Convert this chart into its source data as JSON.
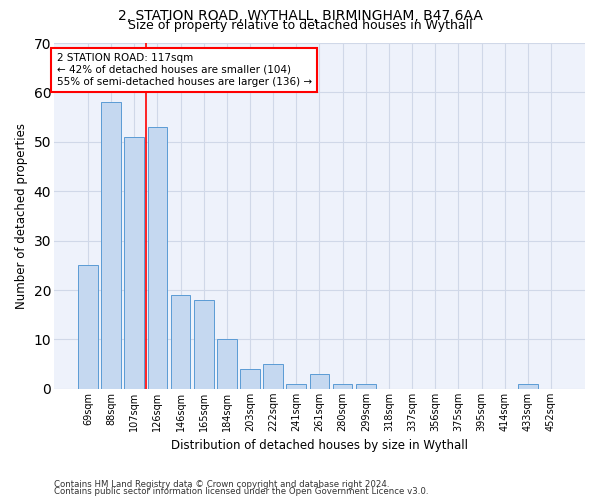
{
  "title1": "2, STATION ROAD, WYTHALL, BIRMINGHAM, B47 6AA",
  "title2": "Size of property relative to detached houses in Wythall",
  "xlabel": "Distribution of detached houses by size in Wythall",
  "ylabel": "Number of detached properties",
  "categories": [
    "69sqm",
    "88sqm",
    "107sqm",
    "126sqm",
    "146sqm",
    "165sqm",
    "184sqm",
    "203sqm",
    "222sqm",
    "241sqm",
    "261sqm",
    "280sqm",
    "299sqm",
    "318sqm",
    "337sqm",
    "356sqm",
    "375sqm",
    "395sqm",
    "414sqm",
    "433sqm",
    "452sqm"
  ],
  "values": [
    25,
    58,
    51,
    53,
    19,
    18,
    10,
    4,
    5,
    1,
    3,
    1,
    1,
    0,
    0,
    0,
    0,
    0,
    0,
    1,
    0
  ],
  "bar_color": "#c5d8f0",
  "bar_edge_color": "#5b9bd5",
  "grid_color": "#d0d8e8",
  "background_color": "#eef2fb",
  "annotation_text": "2 STATION ROAD: 117sqm\n← 42% of detached houses are smaller (104)\n55% of semi-detached houses are larger (136) →",
  "annotation_box_color": "white",
  "annotation_box_edge": "red",
  "red_line_x": 2.5,
  "ylim": [
    0,
    70
  ],
  "yticks": [
    0,
    10,
    20,
    30,
    40,
    50,
    60,
    70
  ],
  "footnote1": "Contains HM Land Registry data © Crown copyright and database right 2024.",
  "footnote2": "Contains public sector information licensed under the Open Government Licence v3.0."
}
